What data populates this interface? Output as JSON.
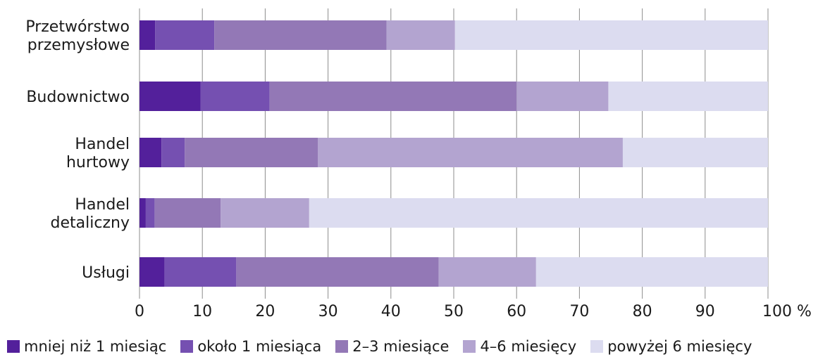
{
  "chart_data": {
    "type": "bar",
    "orientation": "horizontal",
    "stacked": true,
    "title": "",
    "xlabel": "",
    "ylabel": "",
    "xlim": [
      0,
      100
    ],
    "x_ticks": [
      "0",
      "10",
      "20",
      "30",
      "40",
      "50",
      "60",
      "70",
      "80",
      "90",
      "100 %"
    ],
    "grid": "vertical",
    "legend_position": "bottom",
    "categories": [
      [
        "Przetwórstwo",
        "przemysłowe"
      ],
      [
        "Budownictwo"
      ],
      [
        "Handel",
        "hurtowy"
      ],
      [
        "Handel",
        "detaliczny"
      ],
      [
        "Usługi"
      ]
    ],
    "series": [
      {
        "name": "mniej niż 1 miesiąc",
        "color": "#53209b",
        "values": [
          2.5,
          9.7,
          3.5,
          1.0,
          4.0
        ]
      },
      {
        "name": "około 1 miesiąca",
        "color": "#7550b1",
        "values": [
          9.4,
          11.0,
          3.7,
          1.4,
          11.4
        ]
      },
      {
        "name": "2–3 miesiące",
        "color": "#9378b6",
        "values": [
          27.4,
          39.3,
          21.2,
          10.5,
          32.2
        ]
      },
      {
        "name": "4–6 miesięcy",
        "color": "#b3a4d0",
        "values": [
          10.9,
          14.6,
          48.5,
          14.1,
          15.5
        ]
      },
      {
        "name": "powyżej 6 miesięcy",
        "color": "#dcdcf0",
        "values": [
          49.8,
          25.4,
          23.1,
          73.0,
          36.9
        ]
      }
    ]
  }
}
